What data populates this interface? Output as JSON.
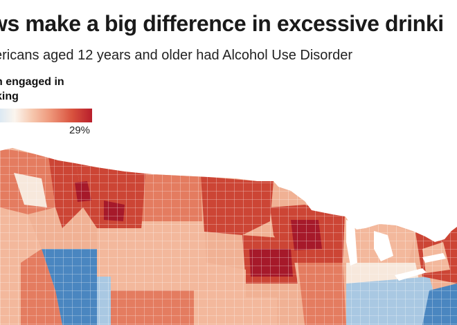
{
  "title": "ws make a big difference in excessive drinki",
  "subtitle": "ericans aged 12 years and older had Alcohol Use Disorder",
  "legend": {
    "title_line1": "n engaged in",
    "title_line2": "king",
    "max_label": "29%",
    "colors": [
      "#dce9f3",
      "#fbf5ee",
      "#f6c7ae",
      "#ee9679",
      "#d9533f",
      "#b81e2b"
    ]
  },
  "map": {
    "subject": "county choropleth of excessive drinking",
    "palette": {
      "low": "#4a86c0",
      "light_blue": "#a9c8e2",
      "pale": "#f7e8dc",
      "light": "#f3b89c",
      "medium": "#e47c60",
      "high": "#cc4535",
      "highest": "#a6192a"
    }
  }
}
